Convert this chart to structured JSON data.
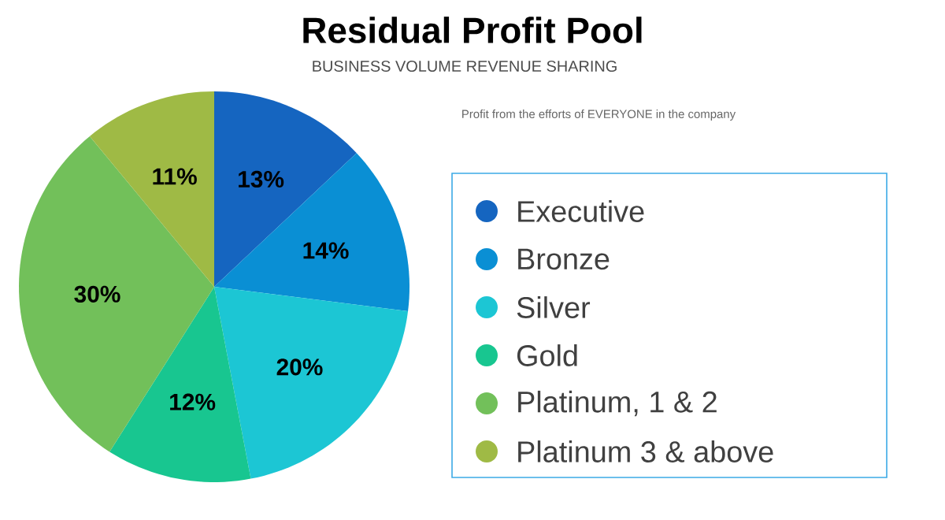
{
  "chart_data": {
    "type": "pie",
    "title": "Residual Profit Pool",
    "subtitle": "BUSINESS VOLUME REVENUE SHARING",
    "annotations": [
      "Profit from the efforts of EVERYONE in the company"
    ],
    "categories": [
      "Executive",
      "Bronze",
      "Silver",
      "Gold",
      "Platinum, 1 & 2",
      "Platinum 3 & above"
    ],
    "values": [
      13,
      14,
      20,
      12,
      30,
      11
    ],
    "value_labels": [
      "13%",
      "14%",
      "20%",
      "12%",
      "30%",
      "11%"
    ],
    "colors": [
      "#1565c0",
      "#0a8fd4",
      "#1cc6d4",
      "#18c690",
      "#72c05a",
      "#9fba45"
    ],
    "legend": "right"
  }
}
